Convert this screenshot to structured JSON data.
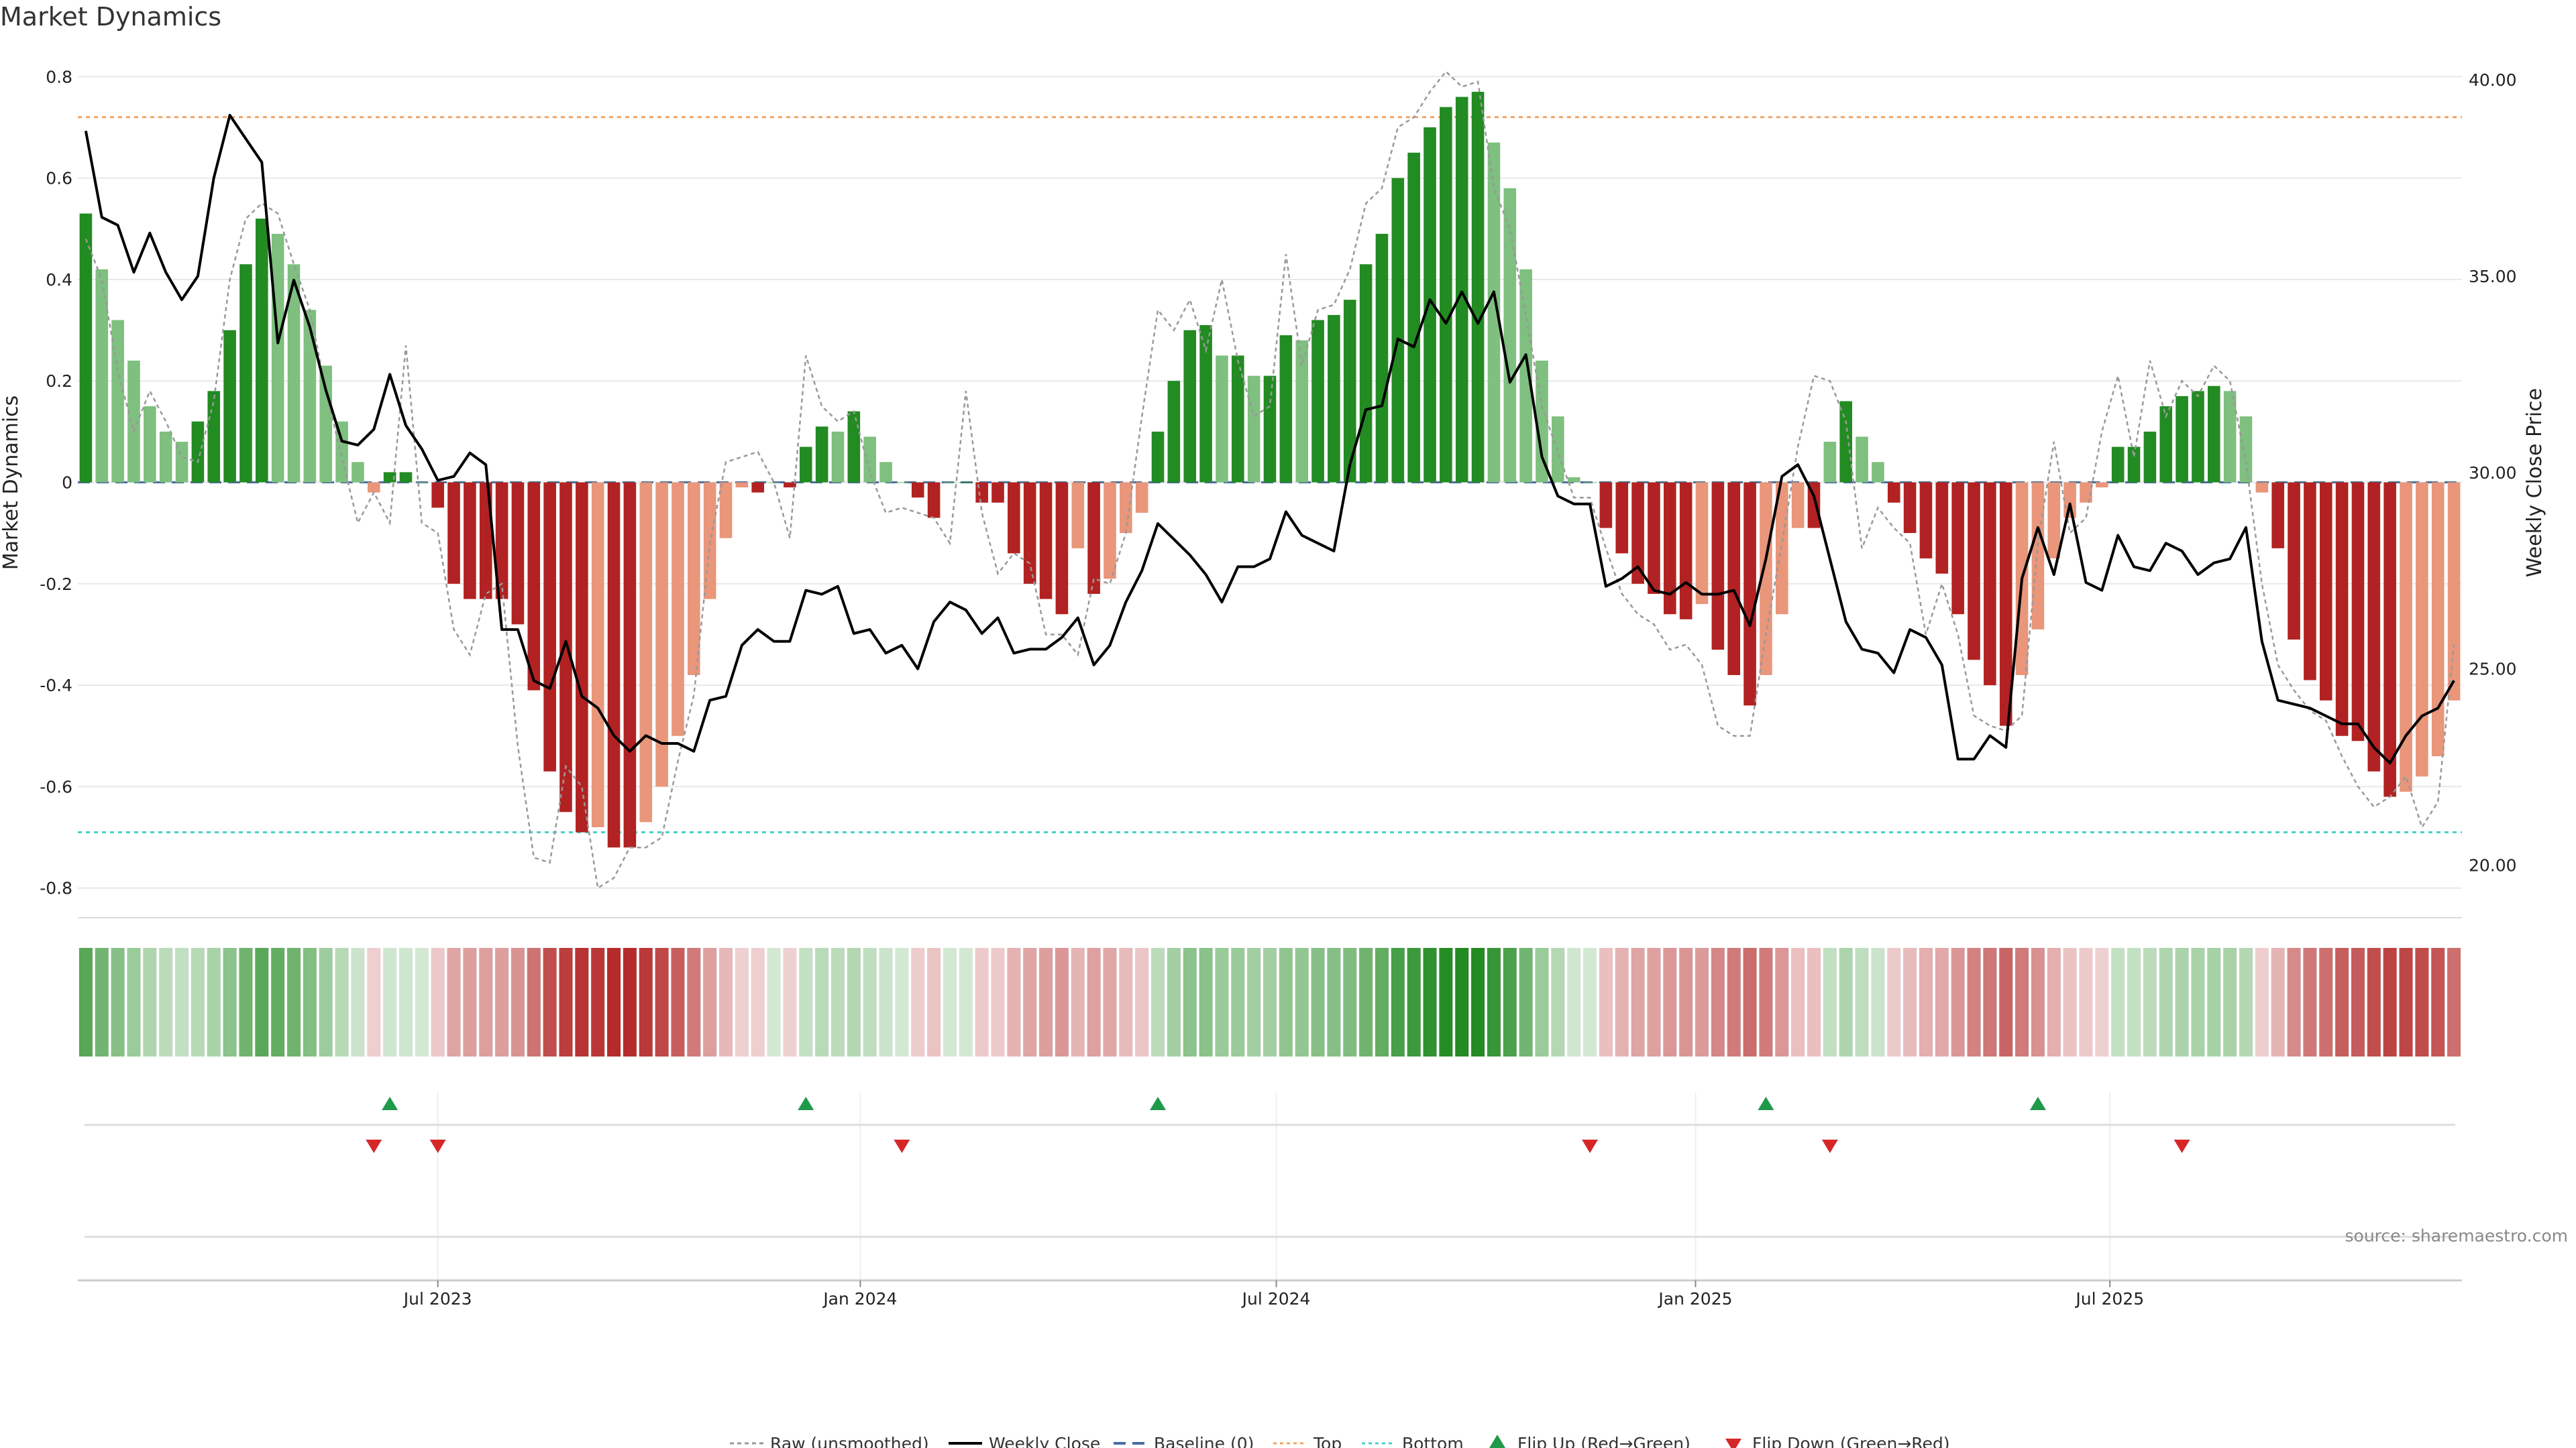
{
  "title": "Market Dynamics",
  "source": "source: sharemaestro.com",
  "colors": {
    "bar_green_strong": "#228b22",
    "bar_green_light": "#7fbf7f",
    "bar_red_strong": "#b22222",
    "bar_red_light": "#e9967a",
    "raw_line": "#999999",
    "close_line": "#000000",
    "baseline": "#4a6d9c",
    "top": "#f4a460",
    "bottom": "#48d1cc",
    "flip_up": "#1e9a4a",
    "flip_down": "#d62728"
  },
  "chart_data": {
    "type": "bar",
    "title": "Market Dynamics",
    "ylabel": "Market Dynamics",
    "y2label": "Weekly Close Price",
    "ylim": [
      -0.84,
      0.84
    ],
    "y2lim": [
      18.9,
      40.6
    ],
    "yticks": [
      {
        "v": 0.8,
        "t": "0.8"
      },
      {
        "v": 0.6,
        "t": "0.6"
      },
      {
        "v": 0.4,
        "t": "0.4"
      },
      {
        "v": 0.2,
        "t": "0.2"
      },
      {
        "v": 0,
        "t": "0"
      },
      {
        "v": -0.2,
        "t": "-0.2"
      },
      {
        "v": -0.4,
        "t": "-0.4"
      },
      {
        "v": -0.6,
        "t": "-0.6"
      },
      {
        "v": -0.8,
        "t": "-0.8"
      }
    ],
    "y2ticks": [
      {
        "v": 40,
        "t": "40.00"
      },
      {
        "v": 35,
        "t": "35.00"
      },
      {
        "v": 30,
        "t": "30.00"
      },
      {
        "v": 25,
        "t": "25.00"
      },
      {
        "v": 20,
        "t": "20.00"
      }
    ],
    "xticks": [
      {
        "i": 22,
        "t": "Jul 2023"
      },
      {
        "i": 48.4,
        "t": "Jan 2024"
      },
      {
        "i": 74.4,
        "t": "Jul 2024"
      },
      {
        "i": 100.6,
        "t": "Jan 2025"
      },
      {
        "i": 126.5,
        "t": "Jul 2025"
      }
    ],
    "reference_lines": {
      "top": 0.72,
      "bottom": -0.69,
      "baseline": 0
    },
    "weekly_dynamics": [
      0.53,
      0.42,
      0.32,
      0.24,
      0.15,
      0.1,
      0.08,
      0.12,
      0.18,
      0.3,
      0.43,
      0.52,
      0.49,
      0.43,
      0.34,
      0.23,
      0.12,
      0.04,
      -0.02,
      0.02,
      0.02,
      0.0,
      -0.05,
      -0.2,
      -0.23,
      -0.23,
      -0.23,
      -0.28,
      -0.41,
      -0.57,
      -0.65,
      -0.69,
      -0.68,
      -0.72,
      -0.72,
      -0.67,
      -0.6,
      -0.5,
      -0.38,
      -0.23,
      -0.11,
      -0.01,
      -0.02,
      0.0,
      -0.01,
      0.07,
      0.11,
      0.1,
      0.14,
      0.09,
      0.04,
      0.0,
      -0.03,
      -0.07,
      0.0,
      0.0,
      -0.04,
      -0.04,
      -0.14,
      -0.2,
      -0.23,
      -0.26,
      -0.13,
      -0.22,
      -0.19,
      -0.1,
      -0.06,
      0.1,
      0.2,
      0.3,
      0.31,
      0.25,
      0.25,
      0.21,
      0.21,
      0.29,
      0.28,
      0.32,
      0.33,
      0.36,
      0.43,
      0.49,
      0.6,
      0.65,
      0.7,
      0.74,
      0.76,
      0.77,
      0.67,
      0.58,
      0.42,
      0.24,
      0.13,
      0.01,
      0.0,
      -0.09,
      -0.14,
      -0.2,
      -0.22,
      -0.26,
      -0.27,
      -0.24,
      -0.33,
      -0.38,
      -0.44,
      -0.38,
      -0.26,
      -0.09,
      -0.09,
      0.08,
      0.16,
      0.09,
      0.04,
      -0.04,
      -0.1,
      -0.15,
      -0.18,
      -0.26,
      -0.35,
      -0.4,
      -0.48,
      -0.38,
      -0.29,
      -0.15,
      -0.07,
      -0.04,
      -0.01,
      0.07,
      0.07,
      0.1,
      0.15,
      0.17,
      0.18,
      0.19,
      0.18,
      0.13,
      -0.02,
      -0.13,
      -0.31,
      -0.39,
      -0.43,
      -0.5,
      -0.51,
      -0.57,
      -0.62,
      -0.61,
      -0.58,
      -0.54,
      -0.43
    ],
    "raw_unsmoothed": [
      0.48,
      0.4,
      0.22,
      0.1,
      0.18,
      0.12,
      0.05,
      0.04,
      0.16,
      0.4,
      0.52,
      0.55,
      0.53,
      0.43,
      0.34,
      0.18,
      0.05,
      -0.08,
      -0.02,
      -0.08,
      0.27,
      -0.08,
      -0.1,
      -0.29,
      -0.34,
      -0.22,
      -0.2,
      -0.52,
      -0.74,
      -0.75,
      -0.56,
      -0.6,
      -0.8,
      -0.78,
      -0.72,
      -0.72,
      -0.7,
      -0.55,
      -0.42,
      -0.12,
      0.04,
      0.05,
      0.06,
      0.0,
      -0.11,
      0.25,
      0.15,
      0.12,
      0.14,
      0.02,
      -0.06,
      -0.05,
      -0.06,
      -0.07,
      -0.12,
      0.18,
      -0.06,
      -0.18,
      -0.14,
      -0.16,
      -0.3,
      -0.3,
      -0.34,
      -0.19,
      -0.2,
      -0.1,
      0.13,
      0.34,
      0.3,
      0.36,
      0.26,
      0.4,
      0.24,
      0.13,
      0.15,
      0.45,
      0.23,
      0.34,
      0.35,
      0.42,
      0.55,
      0.58,
      0.7,
      0.72,
      0.77,
      0.81,
      0.78,
      0.79,
      0.58,
      0.5,
      0.33,
      0.15,
      0.06,
      -0.03,
      -0.03,
      -0.13,
      -0.22,
      -0.26,
      -0.28,
      -0.33,
      -0.32,
      -0.36,
      -0.48,
      -0.5,
      -0.5,
      -0.3,
      -0.12,
      0.07,
      0.21,
      0.2,
      0.12,
      -0.13,
      -0.05,
      -0.09,
      -0.12,
      -0.3,
      -0.2,
      -0.3,
      -0.46,
      -0.48,
      -0.49,
      -0.46,
      -0.12,
      0.08,
      -0.1,
      -0.07,
      0.1,
      0.21,
      0.05,
      0.24,
      0.13,
      0.2,
      0.17,
      0.23,
      0.2,
      0.04,
      -0.2,
      -0.36,
      -0.41,
      -0.45,
      -0.47,
      -0.54,
      -0.6,
      -0.64,
      -0.62,
      -0.58,
      -0.68,
      -0.63,
      -0.32
    ],
    "weekly_close": [
      38.7,
      36.5,
      36.3,
      35.1,
      36.1,
      35.1,
      34.4,
      35.0,
      37.5,
      39.1,
      38.5,
      37.9,
      33.3,
      34.9,
      33.7,
      32.1,
      30.8,
      30.7,
      31.1,
      32.5,
      31.2,
      30.6,
      29.8,
      29.9,
      30.5,
      30.2,
      26.0,
      26.0,
      24.7,
      24.5,
      25.7,
      24.3,
      24.0,
      23.3,
      22.9,
      23.3,
      23.1,
      23.1,
      22.9,
      24.2,
      24.3,
      25.6,
      26.0,
      25.7,
      25.7,
      27.0,
      26.9,
      27.1,
      25.9,
      26.0,
      25.4,
      25.6,
      25.0,
      26.2,
      26.7,
      26.5,
      25.9,
      26.3,
      25.4,
      25.5,
      25.5,
      25.8,
      26.3,
      25.1,
      25.6,
      26.7,
      27.5,
      28.7,
      28.3,
      27.9,
      27.4,
      26.7,
      27.6,
      27.6,
      27.8,
      29.0,
      28.4,
      28.2,
      28.0,
      30.2,
      31.6,
      31.7,
      33.4,
      33.2,
      34.4,
      33.8,
      34.6,
      33.8,
      34.6,
      32.3,
      33.0,
      30.4,
      29.4,
      29.2,
      29.2,
      27.1,
      27.3,
      27.6,
      27.0,
      26.9,
      27.2,
      26.9,
      26.9,
      27.0,
      26.1,
      27.8,
      29.9,
      30.2,
      29.4,
      27.8,
      26.2,
      25.5,
      25.4,
      24.9,
      26.0,
      25.8,
      25.1,
      22.7,
      22.7,
      23.3,
      23.0,
      27.3,
      28.6,
      27.4,
      29.2,
      27.2,
      27.0,
      28.4,
      27.6,
      27.5,
      28.2,
      28.0,
      27.4,
      27.7,
      27.8,
      28.6,
      25.7,
      24.2,
      24.1,
      24.0,
      23.8,
      23.6,
      23.6,
      23.0,
      22.6,
      23.3,
      23.8,
      24.0,
      24.7
    ],
    "flip_up_weeks": [
      19,
      45,
      67,
      105,
      122
    ],
    "flip_down_weeks": [
      18,
      22,
      51,
      94,
      109,
      131
    ]
  },
  "legend": {
    "raw": "Raw (unsmoothed)",
    "close": "Weekly Close",
    "baseline": "Baseline (0)",
    "top": "Top",
    "bottom": "Bottom",
    "flip_up": "Flip Up (Red→Green)",
    "flip_down": "Flip Down (Green→Red)"
  }
}
